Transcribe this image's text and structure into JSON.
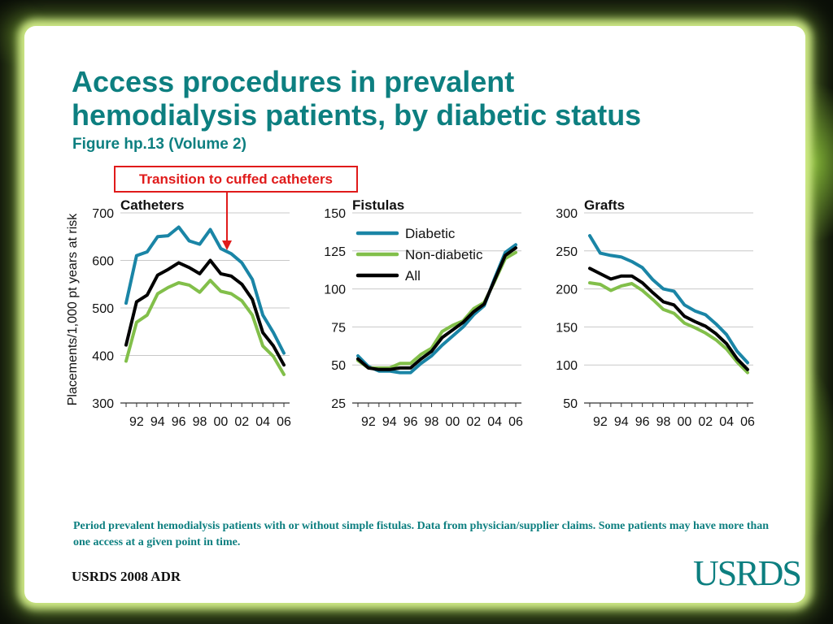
{
  "slide": {
    "title_line1": "Access procedures in prevalent",
    "title_line2": "hemodialysis patients, by diabetic status",
    "subtitle": "Figure hp.13 (Volume 2)",
    "callout": "Transition to cuffed catheters",
    "footnote": "Period prevalent hemodialysis patients with or without simple fistulas. Data from physician/supplier claims. Some patients may have more than one access at a given point in time.",
    "source": "USRDS 2008 ADR",
    "logo": "USRDS"
  },
  "colors": {
    "title": "#0d7f80",
    "diabetic": "#1a85a6",
    "non_diabetic": "#82bf4a",
    "all": "#000000",
    "callout": "#e01b1b"
  },
  "chart_data": [
    {
      "type": "line",
      "title": "Catheters",
      "ylabel": "Placements/1,000 pt years at risk",
      "ylim": [
        300,
        700
      ],
      "yticks": [
        300,
        400,
        500,
        600,
        700
      ],
      "xticks": [
        "92",
        "94",
        "96",
        "98",
        "00",
        "02",
        "04",
        "06"
      ],
      "x": [
        1991,
        1992,
        1993,
        1994,
        1995,
        1996,
        1997,
        1998,
        1999,
        2000,
        2001,
        2002,
        2003,
        2004,
        2005,
        2006
      ],
      "grid": true,
      "series": [
        {
          "name": "Diabetic",
          "values": [
            510,
            610,
            618,
            650,
            652,
            670,
            641,
            634,
            665,
            625,
            614,
            595,
            560,
            485,
            448,
            405
          ]
        },
        {
          "name": "Non-diabetic",
          "values": [
            388,
            470,
            485,
            530,
            543,
            553,
            548,
            533,
            558,
            535,
            530,
            515,
            485,
            420,
            398,
            360
          ]
        },
        {
          "name": "All",
          "values": [
            422,
            513,
            527,
            569,
            581,
            595,
            585,
            572,
            600,
            572,
            567,
            550,
            518,
            448,
            420,
            380
          ]
        }
      ]
    },
    {
      "type": "line",
      "title": "Fistulas",
      "ylim": [
        25,
        150
      ],
      "yticks": [
        25,
        50,
        75,
        100,
        125,
        150
      ],
      "xticks": [
        "92",
        "94",
        "96",
        "98",
        "00",
        "02",
        "04",
        "06"
      ],
      "x": [
        1991,
        1992,
        1993,
        1994,
        1995,
        1996,
        1997,
        1998,
        1999,
        2000,
        2001,
        2002,
        2003,
        2004,
        2005,
        2006
      ],
      "grid": true,
      "legend": "top-left",
      "series": [
        {
          "name": "Diabetic",
          "values": [
            56,
            49,
            46,
            46,
            45,
            45,
            51,
            56,
            63,
            69,
            75,
            83,
            89,
            107,
            124,
            129
          ]
        },
        {
          "name": "Non-diabetic",
          "values": [
            53,
            48,
            48,
            48,
            51,
            51,
            57,
            61,
            72,
            76,
            79,
            87,
            91,
            105,
            120,
            124
          ]
        },
        {
          "name": "All",
          "values": [
            54,
            48,
            47,
            47,
            48,
            48,
            54,
            59,
            68,
            73,
            78,
            85,
            90,
            106,
            122,
            127
          ]
        }
      ]
    },
    {
      "type": "line",
      "title": "Grafts",
      "ylim": [
        50,
        300
      ],
      "yticks": [
        50,
        100,
        150,
        200,
        250,
        300
      ],
      "xticks": [
        "92",
        "94",
        "96",
        "98",
        "00",
        "02",
        "04",
        "06"
      ],
      "x": [
        1991,
        1992,
        1993,
        1994,
        1995,
        1996,
        1997,
        1998,
        1999,
        2000,
        2001,
        2002,
        2003,
        2004,
        2005,
        2006
      ],
      "grid": true,
      "series": [
        {
          "name": "Diabetic",
          "values": [
            270,
            247,
            244,
            242,
            236,
            228,
            212,
            200,
            197,
            179,
            171,
            166,
            154,
            140,
            118,
            103
          ]
        },
        {
          "name": "Non-diabetic",
          "values": [
            208,
            206,
            198,
            204,
            207,
            198,
            186,
            173,
            168,
            155,
            149,
            142,
            133,
            121,
            104,
            90
          ]
        },
        {
          "name": "All",
          "values": [
            227,
            220,
            213,
            217,
            217,
            208,
            195,
            183,
            179,
            164,
            157,
            151,
            141,
            128,
            108,
            94
          ]
        }
      ]
    }
  ]
}
